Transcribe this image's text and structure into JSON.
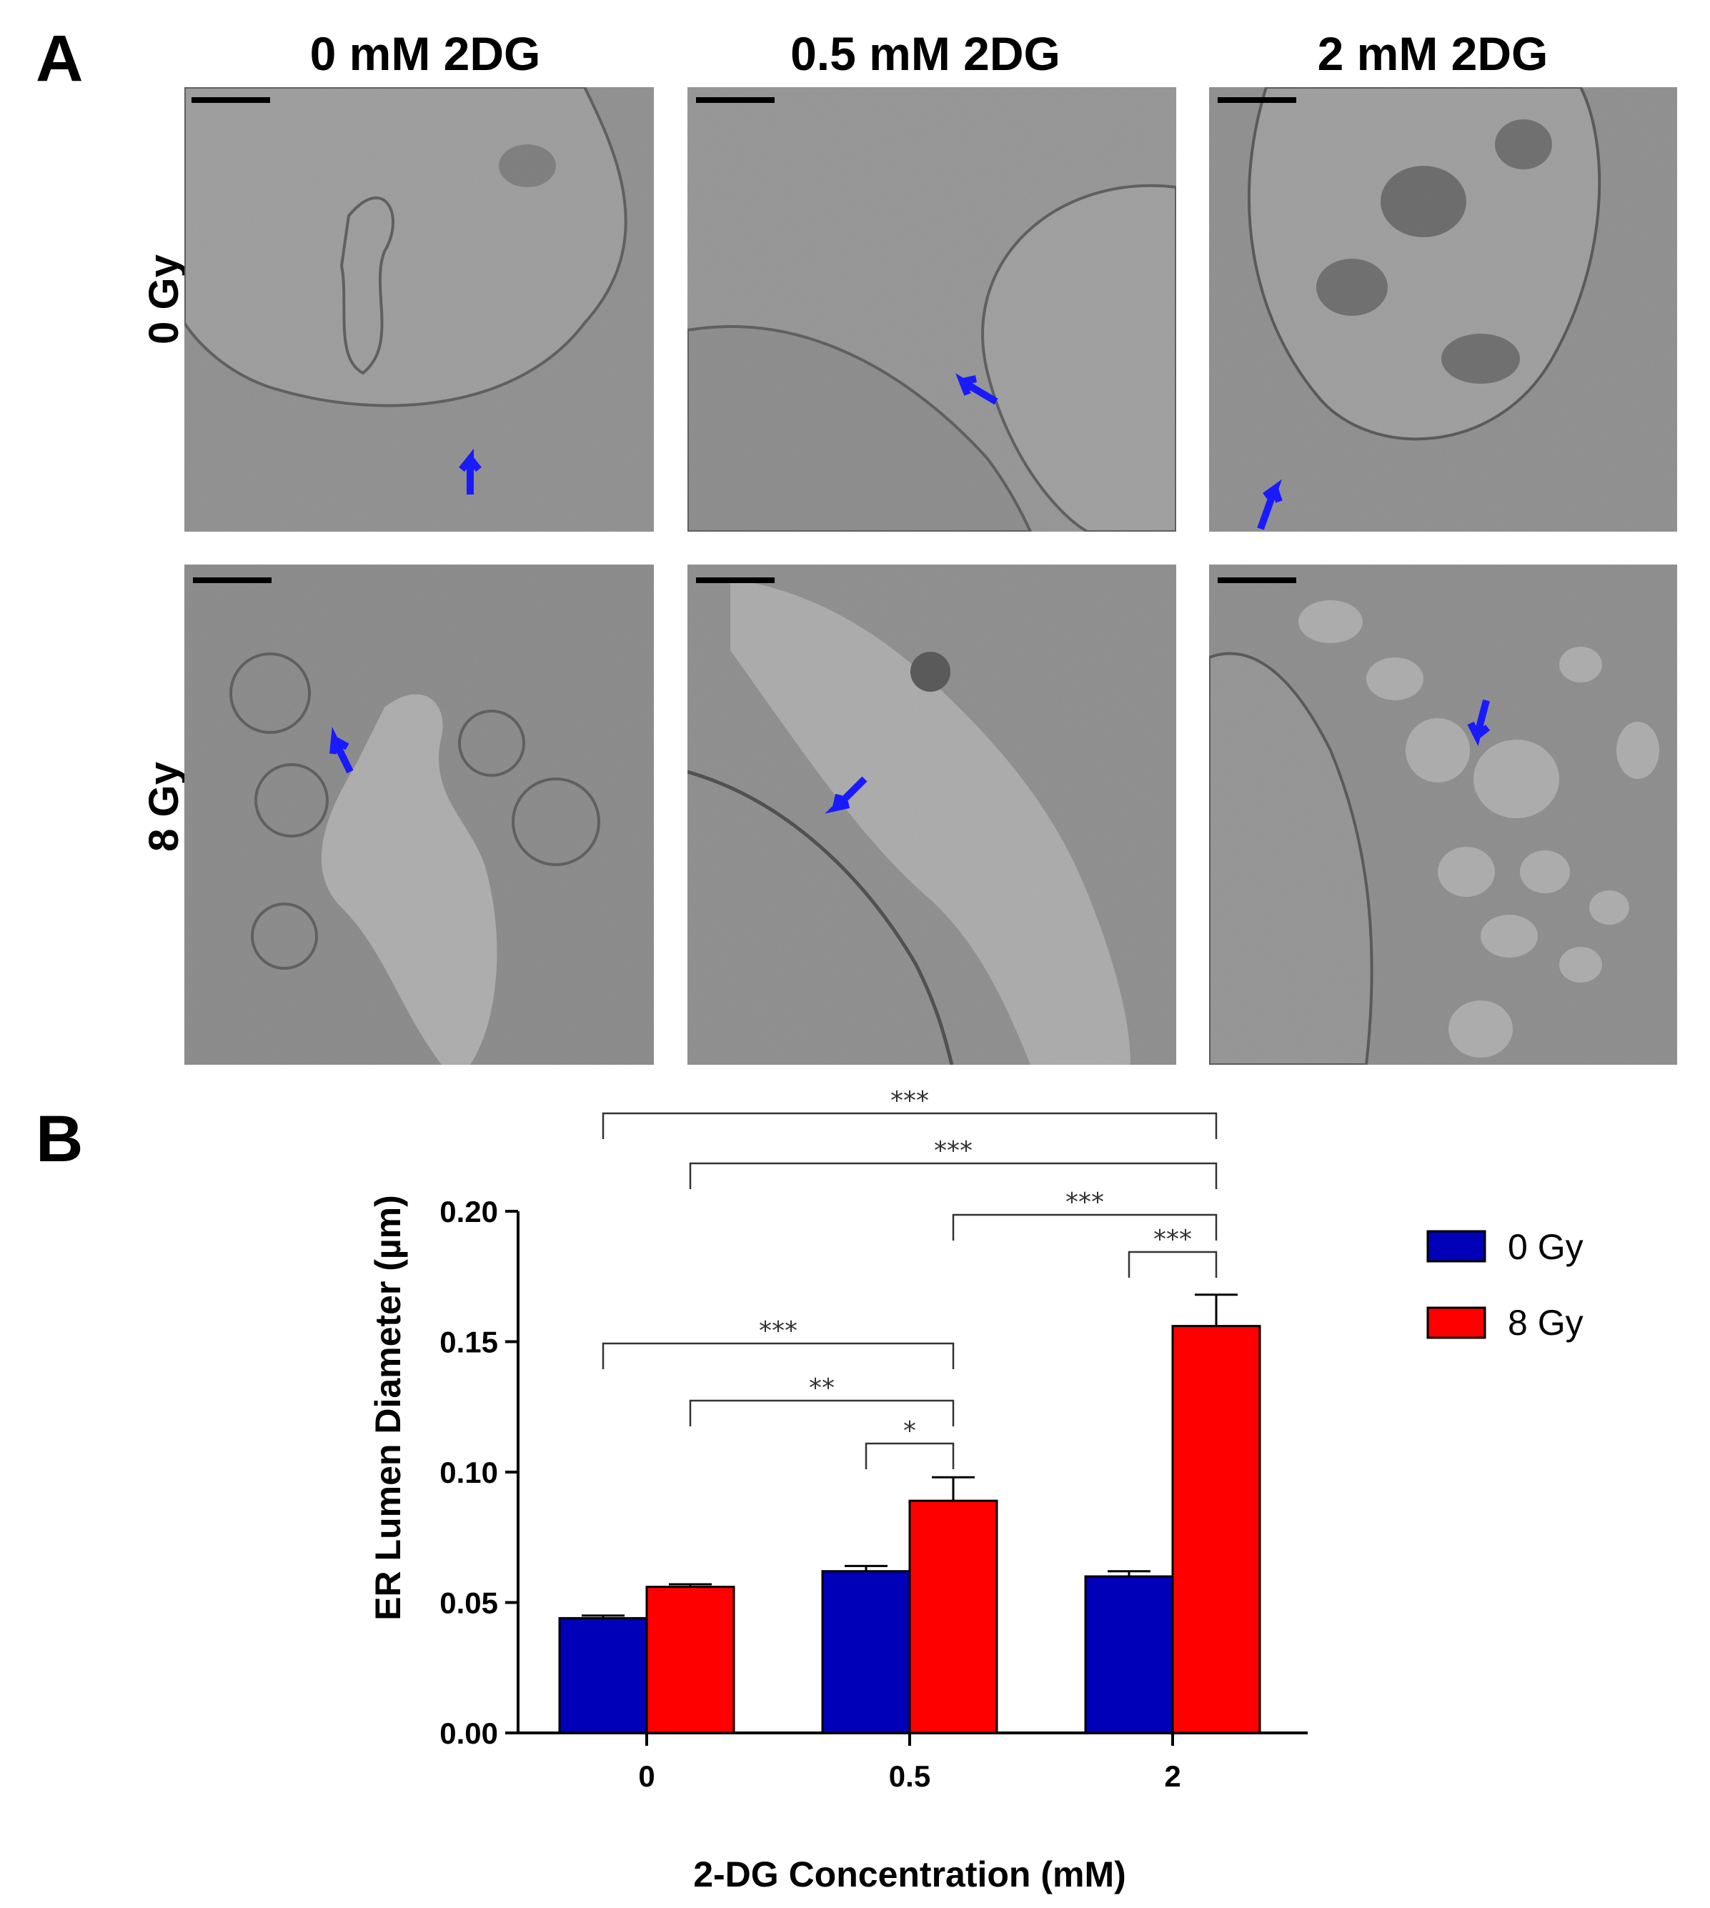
{
  "panel_a": {
    "letter": "A",
    "column_titles": [
      "0 mM 2DG",
      "0.5 mM 2DG",
      "2 mM 2DG"
    ],
    "row_labels": [
      "0 Gy",
      "8 Gy"
    ]
  },
  "panel_b": {
    "letter": "B"
  },
  "colors": {
    "gy0": "#0000b8",
    "gy8": "#ff0000",
    "arrow": "#1a1aff"
  },
  "chart_data": {
    "type": "bar",
    "categories": [
      "0",
      "0.5",
      "2"
    ],
    "xlabel": "2-DG Concentration (mM)",
    "ylabel": "ER Lumen Diameter (µm)",
    "ylim": [
      0,
      0.2
    ],
    "yticks": [
      "0.00",
      "0.05",
      "0.10",
      "0.15",
      "0.20"
    ],
    "series": [
      {
        "name": "0 Gy",
        "values": [
          0.044,
          0.062,
          0.06
        ],
        "errors": [
          0.001,
          0.002,
          0.002
        ],
        "color": "#0000b8"
      },
      {
        "name": "8 Gy",
        "values": [
          0.056,
          0.089,
          0.156
        ],
        "errors": [
          0.001,
          0.009,
          0.012
        ],
        "color": "#ff0000"
      }
    ],
    "legend_position": "right",
    "significance": [
      {
        "label": "***",
        "from": [
          0,
          "0 Gy"
        ],
        "to": [
          2,
          "8 Gy"
        ]
      },
      {
        "label": "***",
        "from": [
          0,
          "8 Gy"
        ],
        "to": [
          2,
          "8 Gy"
        ]
      },
      {
        "label": "***",
        "from": [
          1,
          "8 Gy"
        ],
        "to": [
          2,
          "8 Gy"
        ]
      },
      {
        "label": "***",
        "from": [
          2,
          "0 Gy"
        ],
        "to": [
          2,
          "8 Gy"
        ]
      },
      {
        "label": "***",
        "from": [
          0,
          "0 Gy"
        ],
        "to": [
          1,
          "8 Gy"
        ]
      },
      {
        "label": "**",
        "from": [
          0,
          "8 Gy"
        ],
        "to": [
          1,
          "8 Gy"
        ]
      },
      {
        "label": "*",
        "from": [
          1,
          "0 Gy"
        ],
        "to": [
          1,
          "8 Gy"
        ]
      }
    ]
  }
}
